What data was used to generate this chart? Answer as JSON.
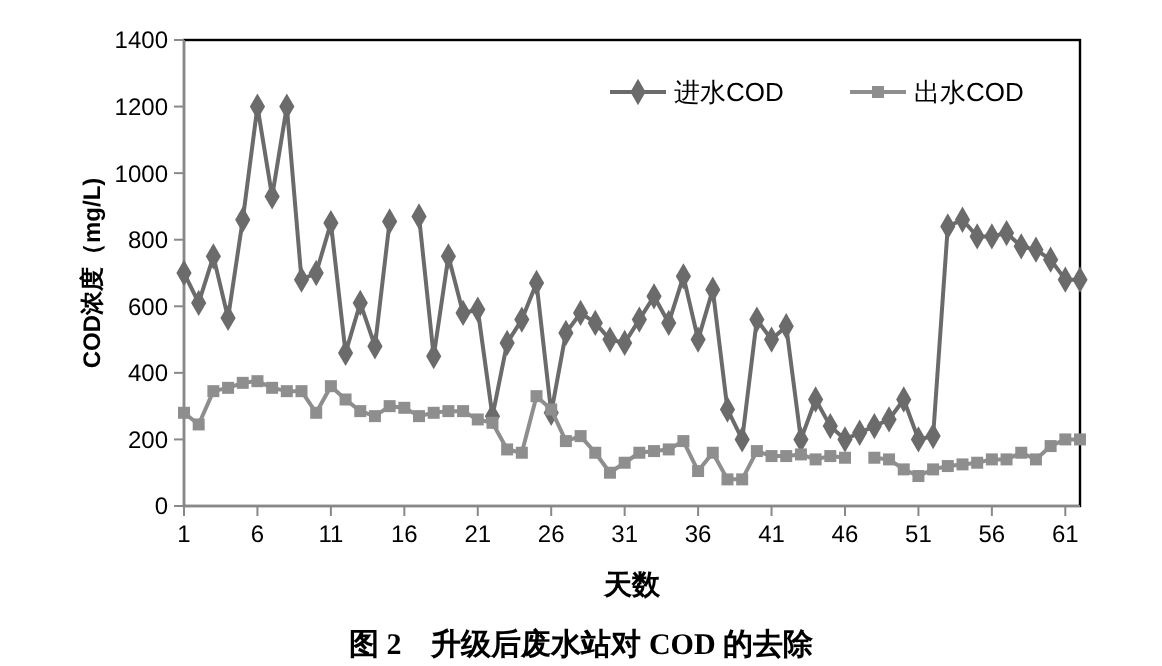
{
  "chart_data": {
    "type": "line",
    "title": "图 2　升级后废水站对 COD 的去除",
    "xlabel": "天数",
    "ylabel": "COD浓度（mg/L)",
    "x": [
      1,
      2,
      3,
      4,
      5,
      6,
      7,
      8,
      9,
      10,
      11,
      12,
      13,
      14,
      15,
      16,
      17,
      18,
      19,
      20,
      21,
      22,
      23,
      24,
      25,
      26,
      27,
      28,
      29,
      30,
      31,
      32,
      33,
      34,
      35,
      36,
      37,
      38,
      39,
      40,
      41,
      42,
      43,
      44,
      45,
      46,
      47,
      48,
      49,
      50,
      51,
      52,
      53,
      54,
      55,
      56,
      57,
      58,
      59,
      60,
      61,
      62
    ],
    "xlim": [
      1,
      62
    ],
    "xticks": [
      1,
      6,
      11,
      16,
      21,
      26,
      31,
      36,
      41,
      46,
      51,
      56,
      61
    ],
    "ylim": [
      0,
      1400
    ],
    "yticks": [
      0,
      200,
      400,
      600,
      800,
      1000,
      1200,
      1400
    ],
    "grid": false,
    "legend": "top right",
    "line_style": "solid",
    "series": [
      {
        "name": "进水COD",
        "color": "#6b6b6b",
        "marker": "diamond",
        "values": [
          700,
          610,
          750,
          565,
          860,
          1200,
          930,
          1200,
          680,
          700,
          850,
          460,
          610,
          480,
          855,
          null,
          870,
          450,
          750,
          580,
          590,
          270,
          490,
          560,
          670,
          280,
          520,
          580,
          550,
          500,
          490,
          560,
          630,
          550,
          690,
          500,
          650,
          290,
          200,
          560,
          500,
          540,
          200,
          320,
          240,
          200,
          220,
          240,
          260,
          320,
          200,
          210,
          840,
          860,
          810,
          810,
          820,
          780,
          770,
          740,
          680,
          680
        ]
      },
      {
        "name": "出水COD",
        "color": "#8e8e8e",
        "marker": "square",
        "values": [
          280,
          245,
          345,
          355,
          370,
          375,
          355,
          345,
          345,
          280,
          360,
          320,
          285,
          270,
          300,
          295,
          270,
          280,
          285,
          285,
          260,
          250,
          170,
          160,
          330,
          290,
          195,
          210,
          160,
          100,
          130,
          160,
          165,
          170,
          195,
          105,
          160,
          80,
          80,
          165,
          150,
          150,
          155,
          140,
          150,
          145,
          null,
          145,
          140,
          110,
          90,
          110,
          120,
          125,
          130,
          140,
          140,
          160,
          140,
          180,
          200,
          200
        ]
      }
    ]
  }
}
